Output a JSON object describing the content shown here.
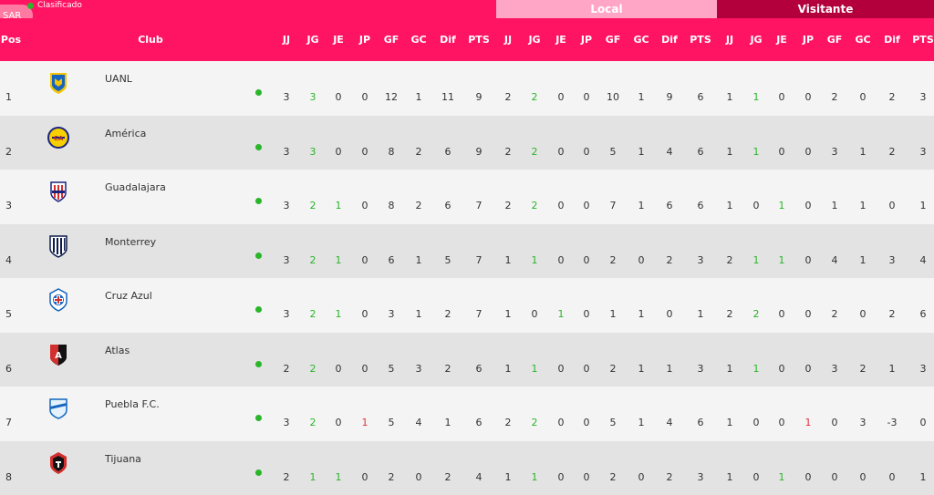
{
  "legend": {
    "label": "Clasificado"
  },
  "pill": {
    "label": "SAR"
  },
  "groups": {
    "local": "Local",
    "visitante": "Visitante"
  },
  "headers": {
    "pos": "Pos",
    "club": "Club",
    "overall": [
      "JJ",
      "JG",
      "JE",
      "JP",
      "GF",
      "GC",
      "Dif",
      "PTS"
    ],
    "local": [
      "JJ",
      "JG",
      "JE",
      "JP",
      "GF",
      "GC",
      "Dif",
      "PTS"
    ],
    "visit": [
      "JJ",
      "JG",
      "JE",
      "JP",
      "GF",
      "GC",
      "Dif",
      "PTS"
    ]
  },
  "colors": {
    "brand": "#ff1463",
    "local_group": "#ffa6c6",
    "visit_group": "#b3003c",
    "qualified": "#2ab52a"
  },
  "rows": [
    {
      "pos": "1",
      "club": "UANL",
      "logo": "tigres-logo",
      "o": [
        "3",
        "3",
        "0",
        "0",
        "12",
        "1",
        "11",
        "9"
      ],
      "l": [
        "2",
        "2",
        "0",
        "0",
        "10",
        "1",
        "9",
        "6"
      ],
      "v": [
        "1",
        "1",
        "0",
        "0",
        "2",
        "0",
        "2",
        "3"
      ]
    },
    {
      "pos": "2",
      "club": "América",
      "logo": "america-logo",
      "o": [
        "3",
        "3",
        "0",
        "0",
        "8",
        "2",
        "6",
        "9"
      ],
      "l": [
        "2",
        "2",
        "0",
        "0",
        "5",
        "1",
        "4",
        "6"
      ],
      "v": [
        "1",
        "1",
        "0",
        "0",
        "3",
        "1",
        "2",
        "3"
      ]
    },
    {
      "pos": "3",
      "club": "Guadalajara",
      "logo": "chivas-logo",
      "o": [
        "3",
        "2",
        "1",
        "0",
        "8",
        "2",
        "6",
        "7"
      ],
      "l": [
        "2",
        "2",
        "0",
        "0",
        "7",
        "1",
        "6",
        "6"
      ],
      "v": [
        "1",
        "0",
        "1",
        "0",
        "1",
        "1",
        "0",
        "1"
      ]
    },
    {
      "pos": "4",
      "club": "Monterrey",
      "logo": "monterrey-logo",
      "o": [
        "3",
        "2",
        "1",
        "0",
        "6",
        "1",
        "5",
        "7"
      ],
      "l": [
        "1",
        "1",
        "0",
        "0",
        "2",
        "0",
        "2",
        "3"
      ],
      "v": [
        "2",
        "1",
        "1",
        "0",
        "4",
        "1",
        "3",
        "4"
      ]
    },
    {
      "pos": "5",
      "club": "Cruz Azul",
      "logo": "cruz-azul-logo",
      "o": [
        "3",
        "2",
        "1",
        "0",
        "3",
        "1",
        "2",
        "7"
      ],
      "l": [
        "1",
        "0",
        "1",
        "0",
        "1",
        "1",
        "0",
        "1"
      ],
      "v": [
        "2",
        "2",
        "0",
        "0",
        "2",
        "0",
        "2",
        "6"
      ]
    },
    {
      "pos": "6",
      "club": "Atlas",
      "logo": "atlas-logo",
      "o": [
        "2",
        "2",
        "0",
        "0",
        "5",
        "3",
        "2",
        "6"
      ],
      "l": [
        "1",
        "1",
        "0",
        "0",
        "2",
        "1",
        "1",
        "3"
      ],
      "v": [
        "1",
        "1",
        "0",
        "0",
        "3",
        "2",
        "1",
        "3"
      ]
    },
    {
      "pos": "7",
      "club": "Puebla F.C.",
      "logo": "puebla-logo",
      "o": [
        "3",
        "2",
        "0",
        "1",
        "5",
        "4",
        "1",
        "6"
      ],
      "l": [
        "2",
        "2",
        "0",
        "0",
        "5",
        "1",
        "4",
        "6"
      ],
      "v": [
        "1",
        "0",
        "0",
        "1",
        "0",
        "3",
        "-3",
        "0"
      ]
    },
    {
      "pos": "8",
      "club": "Tijuana",
      "logo": "tijuana-logo",
      "o": [
        "2",
        "1",
        "1",
        "0",
        "2",
        "0",
        "2",
        "4"
      ],
      "l": [
        "1",
        "1",
        "0",
        "0",
        "2",
        "0",
        "2",
        "3"
      ],
      "v": [
        "1",
        "0",
        "1",
        "0",
        "0",
        "0",
        "0",
        "1"
      ]
    }
  ]
}
